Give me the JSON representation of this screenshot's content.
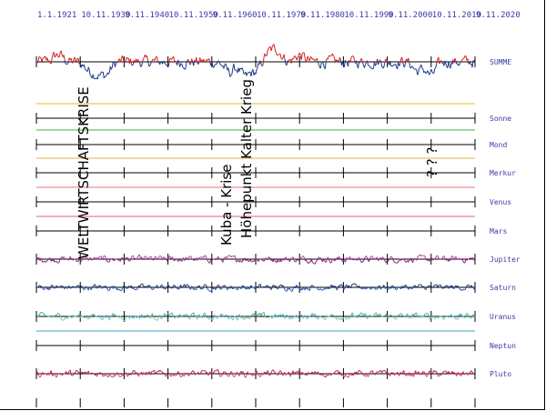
{
  "chart_data": {
    "type": "line",
    "date_labels": [
      "1.1.1921",
      "10.11.1930",
      "9.11.1940",
      "10.11.1950",
      "9.11.1960",
      "10.11.1970",
      "9.11.1980",
      "10.11.1990",
      "9.11.2000",
      "10.11.2010",
      "9.11.2020"
    ],
    "rows": [
      {
        "name": "SUMME",
        "kind": "signal",
        "color_pos": "#d42020",
        "color_neg": "#1c3a8c",
        "amp": 1.0,
        "features": [
          {
            "t": 0.14,
            "d": -1.6
          },
          {
            "t": 0.16,
            "d": -1.9
          },
          {
            "t": 0.12,
            "d": -1.2
          },
          {
            "t": 0.44,
            "d": -1.8
          },
          {
            "t": 0.475,
            "d": -2.5
          },
          {
            "t": 0.5,
            "d": -1.6
          },
          {
            "t": 0.53,
            "d": 1.4
          },
          {
            "t": 0.55,
            "d": 1.8
          },
          {
            "t": 0.6,
            "d": 1.1
          },
          {
            "t": 0.87,
            "d": -1.5
          },
          {
            "t": 0.9,
            "d": -2.2
          },
          {
            "t": 0.05,
            "d": 1.2
          }
        ]
      },
      {
        "name": "Sonne",
        "kind": "flat",
        "color": "#d8c020"
      },
      {
        "name": "Mond",
        "kind": "flat",
        "color": "#40b040"
      },
      {
        "name": "Merkur",
        "kind": "flat",
        "color": "#e0b040"
      },
      {
        "name": "Venus",
        "kind": "flat",
        "color": "#e87070"
      },
      {
        "name": "Mars",
        "kind": "flat",
        "color": "#e06080"
      },
      {
        "name": "Jupiter",
        "kind": "signal",
        "color_pos": "#b040a0",
        "color_neg": "#8a2080",
        "amp": 0.55,
        "features": []
      },
      {
        "name": "Saturn",
        "kind": "signal",
        "color_pos": "#203070",
        "color_neg": "#2a58b0",
        "amp": 0.5,
        "features": []
      },
      {
        "name": "Uranus",
        "kind": "signal",
        "color_pos": "#40b0a0",
        "color_neg": "#7ac8c0",
        "amp": 0.55,
        "features": []
      },
      {
        "name": "Neptun",
        "kind": "flat",
        "color": "#40a0c0"
      },
      {
        "name": "Pluto",
        "kind": "signal",
        "color_pos": "#c02050",
        "color_neg": "#d04080",
        "amp": 0.55,
        "features": []
      }
    ],
    "annotations": [
      "WELTWIRTSCHAFTSKRISE",
      "Kuba - Krise",
      "Höhepunkt Kalter Krieg",
      "? ? ?"
    ],
    "grid": false
  }
}
